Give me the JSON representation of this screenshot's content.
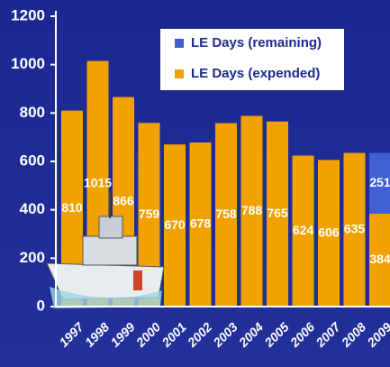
{
  "chart_data": {
    "type": "stacked_bar",
    "categories": [
      "1997",
      "1998",
      "1999",
      "2000",
      "2001",
      "2002",
      "2003",
      "2004",
      "2005",
      "2006",
      "2007",
      "2008",
      "2009"
    ],
    "series": [
      {
        "name": "LE Days (remaining)",
        "color": "#3f5fd2",
        "values": [
          null,
          null,
          null,
          null,
          null,
          null,
          null,
          null,
          null,
          null,
          null,
          null,
          251
        ]
      },
      {
        "name": "LE Days (expended)",
        "color": "#f2a200",
        "values": [
          810,
          1015,
          866,
          759,
          670,
          678,
          758,
          788,
          765,
          624,
          606,
          635,
          384
        ]
      }
    ],
    "ylim": [
      0,
      1200
    ],
    "yticks": [
      0,
      200,
      400,
      600,
      800,
      1000,
      1200
    ],
    "legend": "upper right"
  }
}
